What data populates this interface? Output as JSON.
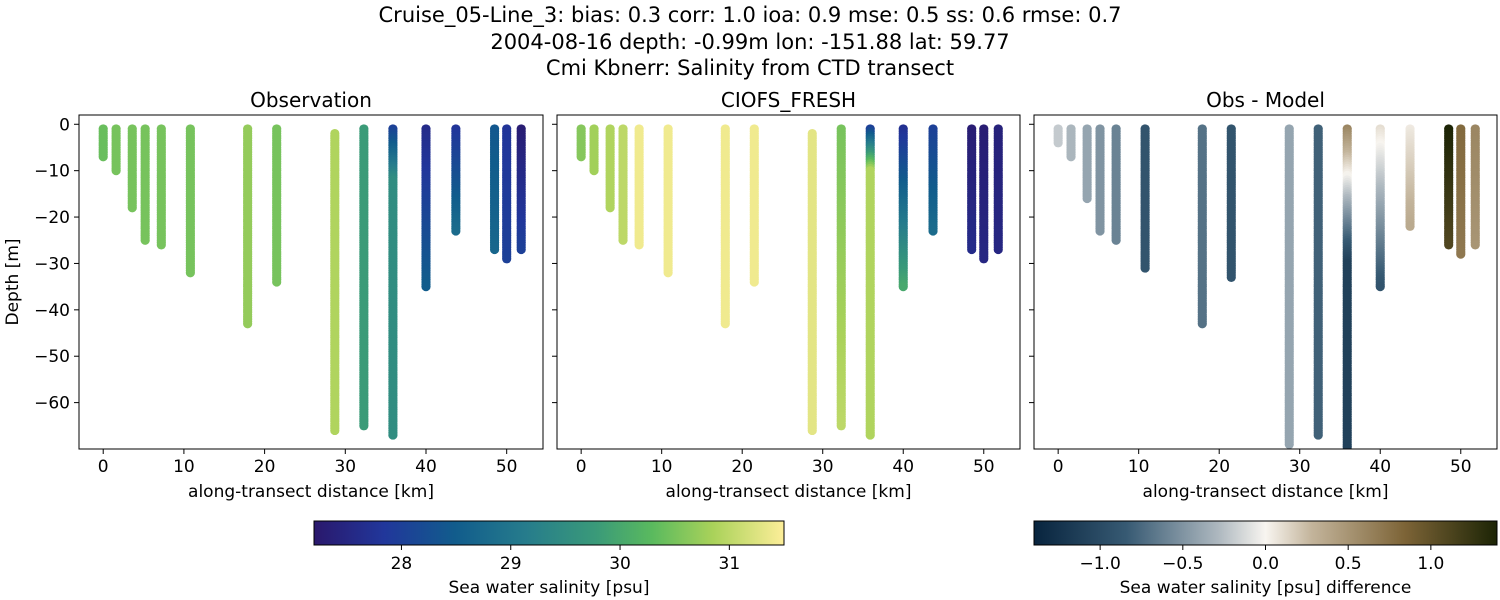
{
  "title": {
    "line1": "Cruise_05-Line_3: bias: 0.3  corr: 1.0  ioa: 0.9  mse: 0.5  ss: 0.6  rmse: 0.7",
    "line2": "2004-08-16 depth: -0.99m lon: -151.88 lat: 59.77",
    "line3": "Cmi Kbnerr: Salinity from CTD transect"
  },
  "chart_data": [
    {
      "type": "scatter",
      "title": "Observation",
      "xlabel": "along-transect distance [km]",
      "ylabel": "Depth [m]",
      "xlim": [
        -3,
        54.5
      ],
      "ylim": [
        -70,
        2
      ],
      "xticks": [
        0,
        10,
        20,
        30,
        40,
        50
      ],
      "yticks": [
        0,
        -10,
        -20,
        -30,
        -40,
        -50,
        -60
      ],
      "colormap": "haline",
      "casts": [
        {
          "x": 0.0,
          "top": -1,
          "bottom": -7,
          "value": 30.4
        },
        {
          "x": 1.6,
          "top": -1,
          "bottom": -10,
          "value": 30.5
        },
        {
          "x": 3.6,
          "top": -1,
          "bottom": -18,
          "value": 30.5
        },
        {
          "x": 5.2,
          "top": -1,
          "bottom": -25,
          "value": 30.5
        },
        {
          "x": 7.2,
          "top": -1,
          "bottom": -26,
          "value": 30.5
        },
        {
          "x": 10.8,
          "top": -1,
          "bottom": -32,
          "value": 30.5
        },
        {
          "x": 17.9,
          "top": -1,
          "bottom": -43,
          "value": 30.7
        },
        {
          "x": 21.5,
          "top": -1,
          "bottom": -34,
          "value": 30.5
        },
        {
          "x": 28.7,
          "top": -2,
          "bottom": -66,
          "value": 30.9
        },
        {
          "x": 32.3,
          "top": -1,
          "bottom": -65,
          "value": 29.8
        },
        {
          "x": 35.9,
          "top": -1,
          "bottom": -67,
          "value": 29.5,
          "topValue": 28.0,
          "topDepth": -12
        },
        {
          "x": 40.0,
          "top": -1,
          "bottom": -35,
          "value": 28.5,
          "topValue": 27.6
        },
        {
          "x": 43.7,
          "top": -1,
          "bottom": -23,
          "value": 28.8,
          "topValue": 27.8
        },
        {
          "x": 48.5,
          "top": -1,
          "bottom": -27,
          "value": 28.7,
          "topValue": 28.4
        },
        {
          "x": 50.0,
          "top": -1,
          "bottom": -29,
          "value": 28.0,
          "topValue": 27.8
        },
        {
          "x": 51.8,
          "top": -1,
          "bottom": -27,
          "value": 28.0,
          "topValue": 27.3
        }
      ]
    },
    {
      "type": "scatter",
      "title": "CIOFS_FRESH",
      "xlabel": "along-transect distance [km]",
      "xlim": [
        -3,
        54.5
      ],
      "ylim": [
        -70,
        2
      ],
      "xticks": [
        0,
        10,
        20,
        30,
        40,
        50
      ],
      "colormap": "haline",
      "casts": [
        {
          "x": 0.0,
          "top": -1,
          "bottom": -7,
          "value": 30.6
        },
        {
          "x": 1.6,
          "top": -1,
          "bottom": -10,
          "value": 30.8
        },
        {
          "x": 3.6,
          "top": -1,
          "bottom": -18,
          "value": 30.9
        },
        {
          "x": 5.2,
          "top": -1,
          "bottom": -25,
          "value": 31.0
        },
        {
          "x": 7.2,
          "top": -1,
          "bottom": -26,
          "value": 31.4
        },
        {
          "x": 10.8,
          "top": -1,
          "bottom": -32,
          "value": 31.4
        },
        {
          "x": 17.9,
          "top": -1,
          "bottom": -43,
          "value": 31.4
        },
        {
          "x": 21.5,
          "top": -1,
          "bottom": -34,
          "value": 31.4
        },
        {
          "x": 28.7,
          "top": -2,
          "bottom": -66,
          "value": 31.3
        },
        {
          "x": 32.3,
          "top": -1,
          "bottom": -65,
          "value": 31.0,
          "topValue": 30.5
        },
        {
          "x": 35.9,
          "top": -1,
          "bottom": -67,
          "value": 30.9,
          "topValue": 28.0,
          "topDepth": -10
        },
        {
          "x": 40.0,
          "top": -1,
          "bottom": -35,
          "value": 30.0,
          "topValue": 27.7
        },
        {
          "x": 43.7,
          "top": -1,
          "bottom": -23,
          "value": 28.8,
          "topValue": 28.0
        },
        {
          "x": 48.5,
          "top": -1,
          "bottom": -27,
          "value": 27.6,
          "topValue": 27.3
        },
        {
          "x": 50.0,
          "top": -1,
          "bottom": -29,
          "value": 27.5,
          "topValue": 27.3
        },
        {
          "x": 51.8,
          "top": -1,
          "bottom": -27,
          "value": 27.5,
          "topValue": 27.4
        }
      ]
    },
    {
      "type": "scatter",
      "title": "Obs - Model",
      "xlabel": "along-transect distance [km]",
      "xlim": [
        -3,
        54.5
      ],
      "ylim": [
        -70,
        2
      ],
      "xticks": [
        0,
        10,
        20,
        30,
        40,
        50
      ],
      "colormap": "diff",
      "casts": [
        {
          "x": 0.0,
          "top": -1,
          "bottom": -4,
          "value": -0.2
        },
        {
          "x": 1.6,
          "top": -1,
          "bottom": -7,
          "value": -0.3
        },
        {
          "x": 3.6,
          "top": -1,
          "bottom": -16,
          "value": -0.4
        },
        {
          "x": 5.2,
          "top": -1,
          "bottom": -23,
          "value": -0.5
        },
        {
          "x": 7.2,
          "top": -1,
          "bottom": -25,
          "value": -0.6
        },
        {
          "x": 10.8,
          "top": -1,
          "bottom": -31,
          "value": -0.9
        },
        {
          "x": 17.9,
          "top": -1,
          "bottom": -43,
          "value": -0.7
        },
        {
          "x": 21.5,
          "top": -1,
          "bottom": -33,
          "value": -0.9
        },
        {
          "x": 28.7,
          "top": -1,
          "bottom": -69,
          "value": -0.4
        },
        {
          "x": 32.3,
          "top": -1,
          "bottom": -67,
          "value": -0.8
        },
        {
          "x": 35.9,
          "top": -1,
          "bottom": -70,
          "value": -1.1,
          "topValue": 0.6,
          "topDepth": -30
        },
        {
          "x": 40.0,
          "top": -1,
          "bottom": -35,
          "value": -0.9,
          "topValue": 0.1
        },
        {
          "x": 43.7,
          "top": -1,
          "bottom": -22,
          "value": 0.35,
          "topValue": 0.05
        },
        {
          "x": 48.5,
          "top": -1,
          "bottom": -26,
          "value": 1.1,
          "topValue": 1.4
        },
        {
          "x": 50.0,
          "top": -1,
          "bottom": -28,
          "value": 0.7,
          "topValue": 0.8
        },
        {
          "x": 51.8,
          "top": -1,
          "bottom": -26,
          "value": 0.5,
          "topValue": 0.6
        }
      ]
    }
  ],
  "colorbars": [
    {
      "label": "Sea water salinity [psu]",
      "min": 27.2,
      "max": 31.5,
      "ticks": [
        28,
        29,
        30,
        31
      ],
      "colormap": "haline"
    },
    {
      "label": "Sea water salinity [psu] difference",
      "min": -1.4,
      "max": 1.4,
      "ticks": [
        -1.0,
        -0.5,
        0.0,
        0.5,
        1.0
      ],
      "colormap": "diff"
    }
  ]
}
